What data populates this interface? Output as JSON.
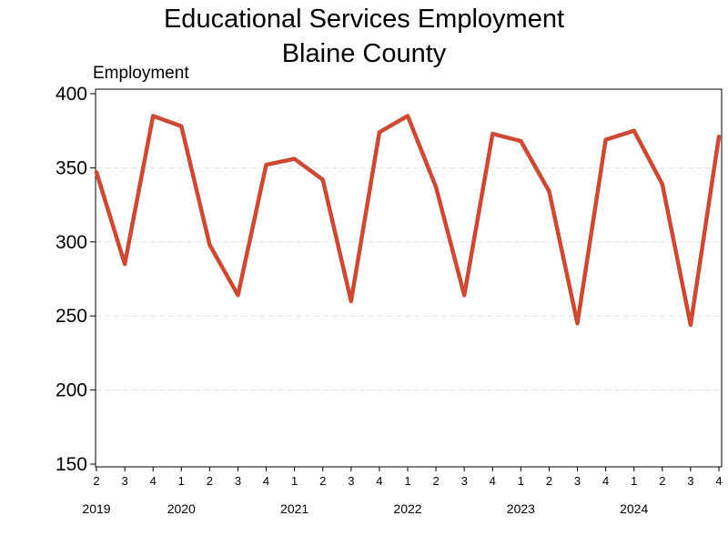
{
  "chart_data": {
    "type": "line",
    "title": "Educational Services Employment",
    "subtitle": "Blaine County",
    "ylabel": "Employment",
    "xlabel": "",
    "ylim": [
      150,
      400
    ],
    "yticks": [
      "150",
      "200",
      "250",
      "300",
      "350",
      "400"
    ],
    "grid": "horizontal dashed",
    "line_color": "#cc4a33",
    "categories": [
      "2",
      "3",
      "4",
      "1",
      "2",
      "3",
      "4",
      "1",
      "2",
      "3",
      "4",
      "1",
      "2",
      "3",
      "4",
      "1",
      "2",
      "3",
      "4",
      "1",
      "2",
      "3",
      "4"
    ],
    "year_labels": [
      {
        "label": "2019",
        "index": 0
      },
      {
        "label": "2020",
        "index": 3
      },
      {
        "label": "2021",
        "index": 7
      },
      {
        "label": "2022",
        "index": 11
      },
      {
        "label": "2023",
        "index": 15
      },
      {
        "label": "2024",
        "index": 19
      }
    ],
    "series": [
      {
        "values": [
          347,
          285,
          385,
          378,
          298,
          264,
          352,
          356,
          342,
          260,
          374,
          385,
          337,
          264,
          373,
          368,
          334,
          245,
          369,
          375,
          339,
          244,
          371
        ]
      }
    ]
  }
}
